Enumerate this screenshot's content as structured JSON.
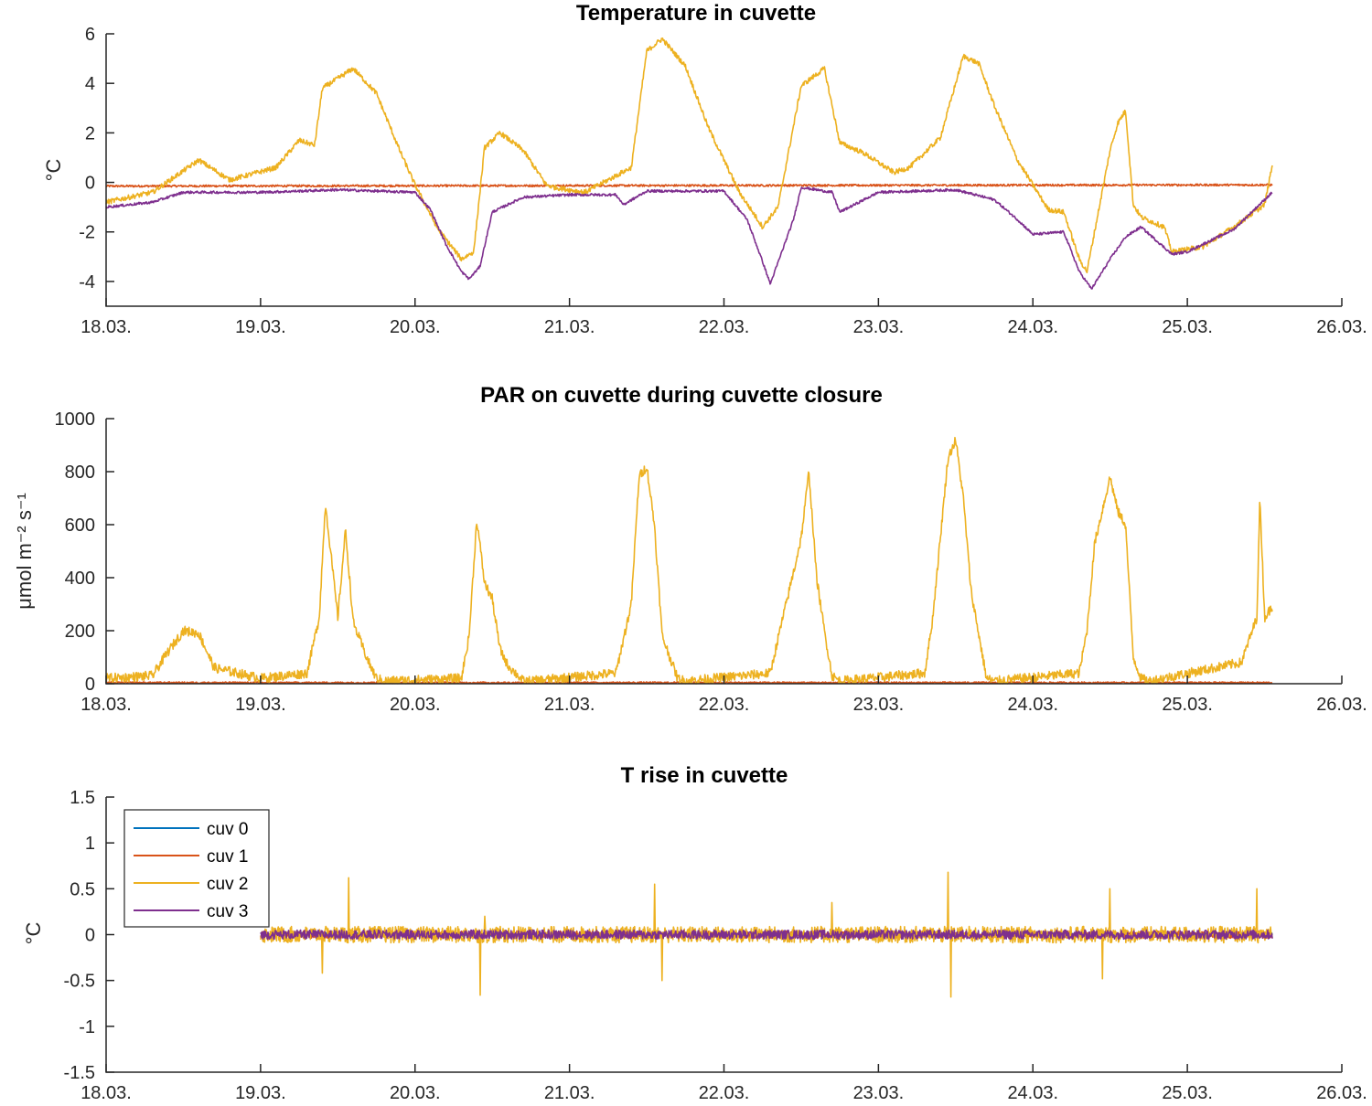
{
  "colors": {
    "cuv0": "#0072BD",
    "cuv1": "#D95319",
    "cuv2": "#EDB120",
    "cuv3": "#7E2F8E",
    "axis": "#262626"
  },
  "legend": {
    "entries": [
      "cuv 0",
      "cuv 1",
      "cuv 2",
      "cuv 3"
    ]
  },
  "chart_data": [
    {
      "type": "line",
      "title": "Temperature in cuvette",
      "ylabel": "°C",
      "xlim": [
        18.0,
        26.0
      ],
      "ylim": [
        -5,
        6
      ],
      "xticks": [
        18,
        19,
        20,
        21,
        22,
        23,
        24,
        25,
        26
      ],
      "xtick_labels": [
        "18.03.",
        "19.03.",
        "20.03.",
        "21.03.",
        "22.03.",
        "23.03.",
        "24.03.",
        "25.03.",
        "26.03."
      ],
      "yticks": [
        -4,
        -2,
        0,
        2,
        4,
        6
      ],
      "ytick_labels": [
        "-4",
        "-2",
        "0",
        "2",
        "4",
        "6"
      ],
      "series": [
        {
          "name": "cuv 1",
          "color": "#D95319",
          "noise": 0.04,
          "x": [
            18.0,
            25.55
          ],
          "y": [
            -0.15,
            -0.1
          ]
        },
        {
          "name": "cuv 2",
          "color": "#EDB120",
          "noise": 0.1,
          "x": [
            18.0,
            18.3,
            18.6,
            18.8,
            19.1,
            19.25,
            19.35,
            19.4,
            19.6,
            19.75,
            19.9,
            20.0,
            20.15,
            20.3,
            20.38,
            20.45,
            20.55,
            20.7,
            20.85,
            20.9,
            21.1,
            21.4,
            21.5,
            21.6,
            21.75,
            21.9,
            22.1,
            22.25,
            22.35,
            22.5,
            22.65,
            22.75,
            22.9,
            23.1,
            23.2,
            23.4,
            23.55,
            23.65,
            23.75,
            23.9,
            24.1,
            24.2,
            24.3,
            24.35,
            24.5,
            24.55,
            24.6,
            24.65,
            24.7,
            24.85,
            24.9,
            25.1,
            25.3,
            25.5,
            25.55
          ],
          "y": [
            -0.8,
            -0.4,
            0.9,
            0.1,
            0.6,
            1.7,
            1.5,
            3.8,
            4.6,
            3.6,
            1.3,
            -0.1,
            -1.9,
            -3.1,
            -2.8,
            1.4,
            2.0,
            1.3,
            -0.1,
            -0.2,
            -0.4,
            0.6,
            5.3,
            5.8,
            4.7,
            2.2,
            -0.4,
            -1.8,
            -1.0,
            3.9,
            4.6,
            1.6,
            1.2,
            0.4,
            0.6,
            1.8,
            5.1,
            4.8,
            3.1,
            0.9,
            -1.1,
            -1.2,
            -3.1,
            -3.6,
            1.3,
            2.4,
            2.9,
            -0.9,
            -1.4,
            -1.8,
            -2.8,
            -2.6,
            -1.8,
            -0.9,
            0.7
          ]
        },
        {
          "name": "cuv 3",
          "color": "#7E2F8E",
          "noise": 0.05,
          "x": [
            18.0,
            18.3,
            18.5,
            19.0,
            19.5,
            20.0,
            20.1,
            20.2,
            20.3,
            20.35,
            20.42,
            20.5,
            20.7,
            21.0,
            21.3,
            21.35,
            21.5,
            22.0,
            22.15,
            22.25,
            22.3,
            22.45,
            22.5,
            22.7,
            22.75,
            23.0,
            23.5,
            23.75,
            23.9,
            24.0,
            24.2,
            24.3,
            24.38,
            24.5,
            24.6,
            24.7,
            24.9,
            25.0,
            25.3,
            25.55
          ],
          "y": [
            -1.0,
            -0.8,
            -0.4,
            -0.4,
            -0.3,
            -0.4,
            -1.1,
            -2.5,
            -3.6,
            -3.9,
            -3.4,
            -1.2,
            -0.6,
            -0.5,
            -0.5,
            -0.9,
            -0.35,
            -0.35,
            -1.5,
            -3.2,
            -4.1,
            -1.5,
            -0.2,
            -0.4,
            -1.2,
            -0.4,
            -0.3,
            -0.7,
            -1.5,
            -2.1,
            -2.0,
            -3.6,
            -4.3,
            -3.1,
            -2.2,
            -1.8,
            -2.9,
            -2.8,
            -1.9,
            -0.4
          ]
        }
      ]
    },
    {
      "type": "line",
      "title": "PAR on cuvette during cuvette closure",
      "ylabel": "μmol m⁻² s⁻¹",
      "xlim": [
        18.0,
        26.0
      ],
      "ylim": [
        0,
        1000
      ],
      "xticks": [
        18,
        19,
        20,
        21,
        22,
        23,
        24,
        25,
        26
      ],
      "xtick_labels": [
        "18.03.",
        "19.03.",
        "20.03.",
        "21.03.",
        "22.03.",
        "23.03.",
        "24.03.",
        "25.03.",
        "26.03."
      ],
      "yticks": [
        0,
        200,
        400,
        600,
        800,
        1000
      ],
      "ytick_labels": [
        "0",
        "200",
        "400",
        "600",
        "800",
        "1000"
      ],
      "series": [
        {
          "name": "cuv 1",
          "color": "#D95319",
          "noise": 3,
          "x": [
            18.0,
            25.55
          ],
          "y": [
            4,
            4
          ]
        },
        {
          "name": "cuv 2",
          "color": "#EDB120",
          "noise": 18,
          "x": [
            18.0,
            18.3,
            18.4,
            18.5,
            18.6,
            18.7,
            19.0,
            19.3,
            19.38,
            19.42,
            19.5,
            19.55,
            19.6,
            19.7,
            19.75,
            19.8,
            20.3,
            20.35,
            20.4,
            20.45,
            20.5,
            20.55,
            20.6,
            20.7,
            20.75,
            21.3,
            21.4,
            21.45,
            21.5,
            21.55,
            21.6,
            21.7,
            21.75,
            22.3,
            22.35,
            22.45,
            22.5,
            22.55,
            22.6,
            22.65,
            22.7,
            22.75,
            23.3,
            23.35,
            23.45,
            23.5,
            23.55,
            23.6,
            23.7,
            23.75,
            24.3,
            24.35,
            24.4,
            24.5,
            24.55,
            24.6,
            24.65,
            24.7,
            24.75,
            25.35,
            25.45,
            25.47,
            25.5,
            25.55
          ],
          "y": [
            20,
            30,
            120,
            200,
            190,
            60,
            20,
            40,
            250,
            680,
            250,
            580,
            230,
            80,
            20,
            10,
            20,
            180,
            620,
            380,
            320,
            130,
            70,
            10,
            10,
            40,
            300,
            780,
            820,
            600,
            180,
            20,
            10,
            40,
            170,
            420,
            550,
            800,
            400,
            200,
            30,
            10,
            40,
            240,
            850,
            920,
            700,
            350,
            20,
            10,
            40,
            200,
            530,
            780,
            650,
            600,
            100,
            20,
            10,
            80,
            250,
            700,
            250,
            290
          ]
        }
      ]
    },
    {
      "type": "line",
      "title": "T rise in cuvette",
      "ylabel": "°C",
      "xlim": [
        18.0,
        26.0
      ],
      "ylim": [
        -1.5,
        1.5
      ],
      "xticks": [
        18,
        19,
        20,
        21,
        22,
        23,
        24,
        25,
        26
      ],
      "xtick_labels": [
        "18.03.",
        "19.03.",
        "20.03.",
        "21.03.",
        "22.03.",
        "23.03.",
        "24.03.",
        "25.03.",
        "26.03."
      ],
      "yticks": [
        -1.5,
        -1,
        -0.5,
        0,
        0.5,
        1,
        1.5
      ],
      "ytick_labels": [
        "-1.5",
        "-1",
        "-0.5",
        "0",
        "0.5",
        "1",
        "1.5"
      ],
      "series": [
        {
          "name": "cuv 0",
          "color": "#0072BD",
          "noise": 0.02,
          "x": [
            19.0,
            25.55
          ],
          "y": [
            0.0,
            0.0
          ]
        },
        {
          "name": "cuv 1",
          "color": "#D95319",
          "noise": 0.04,
          "x": [
            19.0,
            25.55
          ],
          "y": [
            0.0,
            0.0
          ]
        },
        {
          "name": "cuv 2",
          "color": "#EDB120",
          "noise": 0.09,
          "x": [
            19.0,
            25.55
          ],
          "y": [
            0.0,
            0.0
          ],
          "spikes": [
            [
              19.57,
              0.62
            ],
            [
              19.4,
              -0.42
            ],
            [
              20.42,
              -0.66
            ],
            [
              20.45,
              0.2
            ],
            [
              21.55,
              0.55
            ],
            [
              21.6,
              -0.5
            ],
            [
              22.7,
              0.35
            ],
            [
              23.45,
              0.68
            ],
            [
              23.47,
              -0.68
            ],
            [
              24.5,
              0.5
            ],
            [
              24.45,
              -0.48
            ],
            [
              25.45,
              0.5
            ]
          ]
        },
        {
          "name": "cuv 3",
          "color": "#7E2F8E",
          "noise": 0.05,
          "x": [
            19.0,
            25.55
          ],
          "y": [
            0.0,
            0.0
          ]
        }
      ]
    }
  ]
}
